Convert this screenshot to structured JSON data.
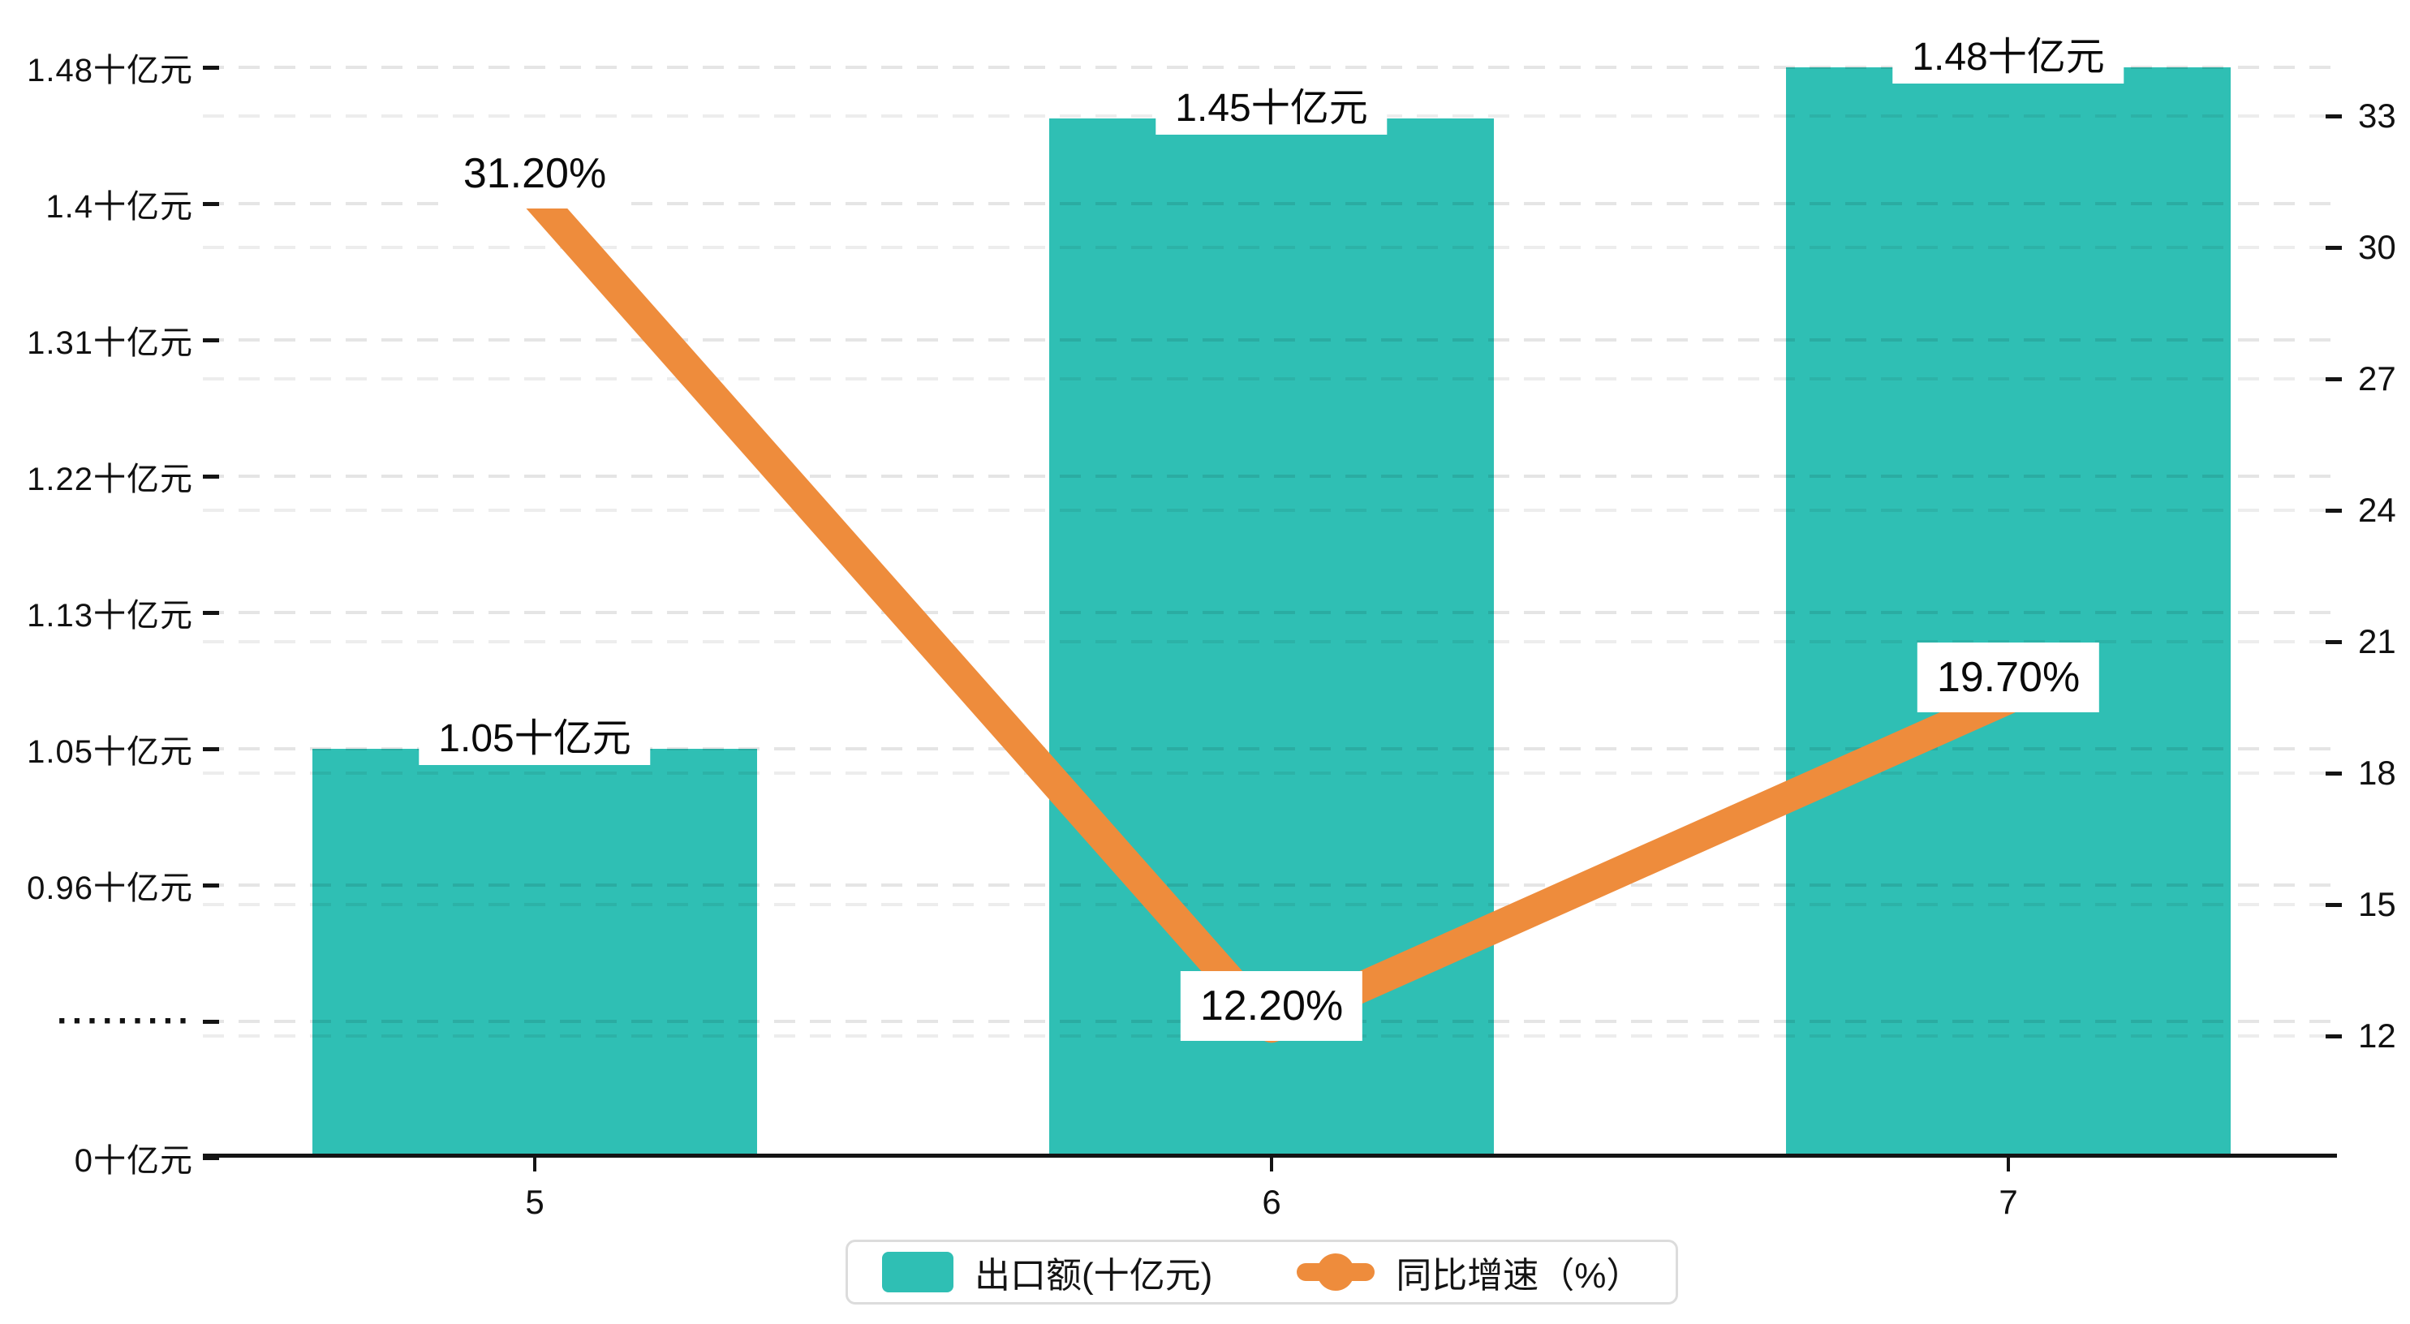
{
  "chart_data": {
    "type": "bar",
    "subtype": "bar-line-combo",
    "categories": [
      "5",
      "6",
      "7"
    ],
    "series": [
      {
        "name": "出口额(十亿元)",
        "type": "bar",
        "values": [
          1.05,
          1.45,
          1.48
        ],
        "data_labels": [
          "1.05十亿元",
          "1.45十亿元",
          "1.48十亿元"
        ],
        "color": "#2FBFB4"
      },
      {
        "name": "同比增速（%）",
        "type": "line",
        "values": [
          31.2,
          12.2,
          19.7
        ],
        "data_labels": [
          "31.20%",
          "12.20%",
          "19.70%"
        ],
        "color": "#EE8C3C"
      }
    ],
    "left_axis": {
      "tick_labels": [
        "0十亿元",
        "·········",
        "0.96十亿元",
        "1.05十亿元",
        "1.13十亿元",
        "1.22十亿元",
        "1.31十亿元",
        "1.4十亿元",
        "1.48十亿元"
      ],
      "tick_values": [
        0,
        0.87,
        0.96,
        1.05,
        1.13,
        1.22,
        1.31,
        1.4,
        1.48
      ],
      "has_axis_break": true
    },
    "right_axis": {
      "tick_labels": [
        "12",
        "15",
        "18",
        "21",
        "24",
        "27",
        "30",
        "33"
      ],
      "tick_values": [
        12,
        15,
        18,
        21,
        24,
        27,
        30,
        33
      ],
      "range_hint": [
        9.4,
        35
      ]
    },
    "grid": "dashed horizontal, both axes",
    "legend_position": "bottom-center",
    "legend": [
      {
        "label": "出口额(十亿元)",
        "marker": "teal-rect"
      },
      {
        "label": "同比增速 (%)",
        "marker": "orange-line-dot"
      }
    ]
  },
  "colors": {
    "bar": "#2FBFB4",
    "line": "#EE8C3C",
    "axis": "#141414",
    "grid_left": "rgba(0,0,0,0.10)",
    "grid_right": "rgba(0,0,0,0.07)",
    "plaque_bg": "#ffffff",
    "text": "#111111",
    "legend_border": "#dcdcdc"
  }
}
